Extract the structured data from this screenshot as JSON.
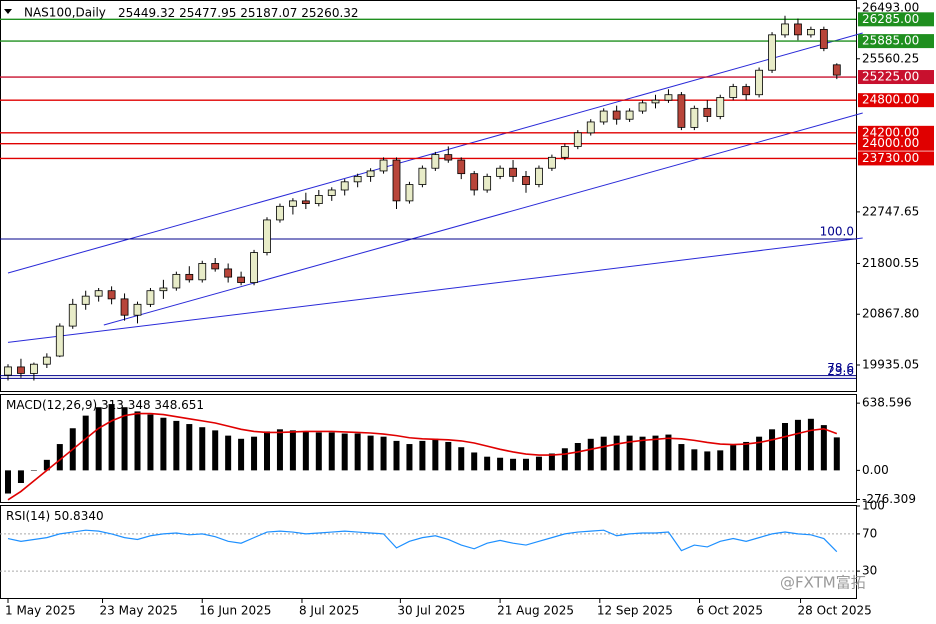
{
  "header": {
    "symbol": "NAS100,Daily"
  },
  "chart_data": [
    {
      "type": "candlestick",
      "candles": [
        [
          19750,
          19950,
          19650,
          19900
        ],
        [
          19900,
          20050,
          19700,
          19780
        ],
        [
          19780,
          19980,
          19650,
          19950
        ],
        [
          19950,
          20150,
          19880,
          20080
        ],
        [
          20100,
          20700,
          20080,
          20650
        ],
        [
          20650,
          21150,
          20600,
          21050
        ],
        [
          21050,
          21300,
          20950,
          21200
        ],
        [
          21200,
          21350,
          21100,
          21300
        ],
        [
          21300,
          21380,
          21050,
          21150
        ],
        [
          21150,
          21250,
          20750,
          20850
        ],
        [
          20850,
          21100,
          20700,
          21050
        ],
        [
          21050,
          21350,
          21000,
          21300
        ],
        [
          21300,
          21500,
          21150,
          21350
        ],
        [
          21350,
          21650,
          21300,
          21600
        ],
        [
          21600,
          21750,
          21450,
          21500
        ],
        [
          21500,
          21850,
          21450,
          21800
        ],
        [
          21800,
          21900,
          21650,
          21700
        ],
        [
          21700,
          21800,
          21450,
          21550
        ],
        [
          21550,
          21650,
          21400,
          21450
        ],
        [
          21450,
          22050,
          21400,
          22000
        ],
        [
          22000,
          22650,
          21950,
          22600
        ],
        [
          22600,
          22900,
          22550,
          22850
        ],
        [
          22850,
          23000,
          22700,
          22950
        ],
        [
          22950,
          23100,
          22800,
          22900
        ],
        [
          22900,
          23150,
          22850,
          23050
        ],
        [
          23050,
          23200,
          22950,
          23150
        ],
        [
          23150,
          23350,
          23050,
          23300
        ],
        [
          23300,
          23450,
          23200,
          23400
        ],
        [
          23400,
          23550,
          23300,
          23500
        ],
        [
          23500,
          23750,
          23450,
          23700
        ],
        [
          23700,
          23750,
          22800,
          22950
        ],
        [
          22950,
          23300,
          22900,
          23250
        ],
        [
          23250,
          23600,
          23200,
          23550
        ],
        [
          23550,
          23850,
          23500,
          23800
        ],
        [
          23800,
          23950,
          23650,
          23700
        ],
        [
          23700,
          23750,
          23350,
          23450
        ],
        [
          23450,
          23500,
          23050,
          23150
        ],
        [
          23150,
          23450,
          23100,
          23400
        ],
        [
          23400,
          23600,
          23350,
          23550
        ],
        [
          23550,
          23700,
          23300,
          23400
        ],
        [
          23400,
          23500,
          23100,
          23250
        ],
        [
          23250,
          23600,
          23200,
          23550
        ],
        [
          23550,
          23800,
          23500,
          23750
        ],
        [
          23750,
          24000,
          23700,
          23950
        ],
        [
          23950,
          24250,
          23900,
          24200
        ],
        [
          24200,
          24450,
          24150,
          24400
        ],
        [
          24400,
          24650,
          24350,
          24600
        ],
        [
          24600,
          24700,
          24350,
          24450
        ],
        [
          24450,
          24650,
          24400,
          24600
        ],
        [
          24600,
          24800,
          24550,
          24750
        ],
        [
          24750,
          24900,
          24650,
          24800
        ],
        [
          24800,
          25000,
          24750,
          24900
        ],
        [
          24900,
          24950,
          24250,
          24300
        ],
        [
          24300,
          24700,
          24250,
          24650
        ],
        [
          24650,
          24800,
          24400,
          24500
        ],
        [
          24500,
          24900,
          24450,
          24850
        ],
        [
          24850,
          25100,
          24800,
          25050
        ],
        [
          25050,
          25100,
          24800,
          24900
        ],
        [
          24900,
          25400,
          24850,
          25350
        ],
        [
          25350,
          26050,
          25300,
          26000
        ],
        [
          26000,
          26350,
          25950,
          26200
        ],
        [
          26200,
          26300,
          25900,
          26000
        ],
        [
          26000,
          26150,
          25950,
          26100
        ],
        [
          26100,
          26150,
          25700,
          25750
        ],
        [
          25449.32,
          25477.95,
          25187.07,
          25260.32
        ]
      ],
      "up_color": "#e8ecc8",
      "down_color": "#b8453a",
      "ylim": [
        19476,
        26640
      ],
      "yticks": [
        {
          "value": 26493,
          "label": "26493.00"
        },
        {
          "value": 25560.25,
          "label": "25560.25"
        },
        {
          "value": 22747.65,
          "label": "22747.65"
        },
        {
          "value": 21800.55,
          "label": "21800.55"
        },
        {
          "value": 20867.8,
          "label": "20867.80"
        },
        {
          "value": 19935.05,
          "label": "19935.05"
        }
      ],
      "levels": [
        {
          "value": 26285,
          "label": "26285.00",
          "color": "#1f8f1f"
        },
        {
          "value": 25885,
          "label": "25885.00",
          "color": "#1f8f1f"
        },
        {
          "value": 25225,
          "label": "25225.00",
          "color": "#c8102e"
        },
        {
          "value": 24800,
          "label": "24800.00",
          "color": "#e00000"
        },
        {
          "value": 24200,
          "label": "24200.00",
          "color": "#e00000"
        },
        {
          "value": 24000,
          "label": "24000.00",
          "color": "#e00000"
        },
        {
          "value": 23730,
          "label": "23730.00",
          "color": "#e00000"
        }
      ],
      "fib_levels": [
        {
          "value": 22250,
          "label": "100.0"
        },
        {
          "value": 19740,
          "label": "78.6"
        },
        {
          "value": 19690,
          "label": "23.6"
        }
      ],
      "fib_color": "#00008b",
      "trendlines": [
        {
          "from": [
            0,
            21625
          ],
          "to": [
            66,
            26034
          ]
        },
        {
          "from": [
            7.4,
            20670
          ],
          "to": [
            66,
            24564
          ]
        },
        {
          "from": [
            0,
            20350
          ],
          "to": [
            66,
            22268
          ]
        }
      ],
      "trendline_color": "#2a2ad8",
      "x_labels": [
        {
          "label": "1 May 2025",
          "index": 0
        },
        {
          "label": "23 May 2025",
          "index": 7.3
        },
        {
          "label": "16 Jun 2025",
          "index": 15
        },
        {
          "label": "8 Jul 2025",
          "index": 22.7
        },
        {
          "label": "30 Jul 2025",
          "index": 30.3
        },
        {
          "label": "21 Aug 2025",
          "index": 38
        },
        {
          "label": "12 Sep 2025",
          "index": 45.7
        },
        {
          "label": "6 Oct 2025",
          "index": 53.4
        },
        {
          "label": "28 Oct 2025",
          "index": 61.2
        }
      ]
    },
    {
      "type": "macd",
      "title": "MACD(12,26,9)",
      "histogram": [
        -220,
        -120,
        0,
        100,
        250,
        400,
        520,
        600,
        630,
        600,
        560,
        530,
        500,
        470,
        440,
        410,
        380,
        330,
        300,
        320,
        370,
        390,
        380,
        370,
        360,
        360,
        350,
        350,
        330,
        320,
        280,
        250,
        280,
        300,
        270,
        220,
        170,
        130,
        120,
        110,
        110,
        130,
        160,
        210,
        260,
        300,
        320,
        330,
        330,
        320,
        330,
        340,
        250,
        200,
        180,
        190,
        240,
        270,
        320,
        390,
        450,
        480,
        490,
        430,
        313.348
      ],
      "signal": [
        -280,
        -200,
        -100,
        0,
        100,
        200,
        300,
        400,
        470,
        520,
        540,
        540,
        530,
        510,
        490,
        470,
        450,
        420,
        390,
        370,
        360,
        360,
        365,
        370,
        370,
        370,
        365,
        360,
        355,
        345,
        330,
        310,
        300,
        295,
        290,
        280,
        260,
        230,
        200,
        175,
        155,
        145,
        145,
        155,
        175,
        200,
        225,
        250,
        270,
        285,
        295,
        305,
        300,
        285,
        265,
        250,
        245,
        250,
        265,
        290,
        320,
        350,
        380,
        395,
        348.651
      ],
      "hist_color": "#000000",
      "signal_color": "#e00000",
      "ylim": [
        -310,
        716
      ],
      "yticks": [
        {
          "value": 638.596,
          "label": "638.596"
        },
        {
          "value": 0,
          "label": "0.00"
        },
        {
          "value": -276.309,
          "label": "-276.309"
        }
      ]
    },
    {
      "type": "rsi",
      "title": "RSI(14)",
      "current_label": "50.8340",
      "values": [
        65,
        62,
        64,
        66,
        70,
        72,
        74,
        73,
        70,
        66,
        64,
        68,
        70,
        71,
        69,
        70,
        67,
        62,
        60,
        66,
        72,
        73,
        72,
        70,
        71,
        72,
        73,
        72,
        71,
        70,
        55,
        62,
        66,
        68,
        64,
        58,
        54,
        60,
        63,
        60,
        58,
        62,
        66,
        70,
        72,
        73,
        74,
        68,
        70,
        71,
        71,
        72,
        52,
        58,
        56,
        62,
        65,
        62,
        66,
        70,
        72,
        70,
        69,
        65,
        50.834
      ],
      "color": "#1e90ff",
      "ylim": [
        0,
        100
      ],
      "yticks": [
        100,
        70,
        30
      ]
    }
  ],
  "watermark": "@FXTM富拓"
}
